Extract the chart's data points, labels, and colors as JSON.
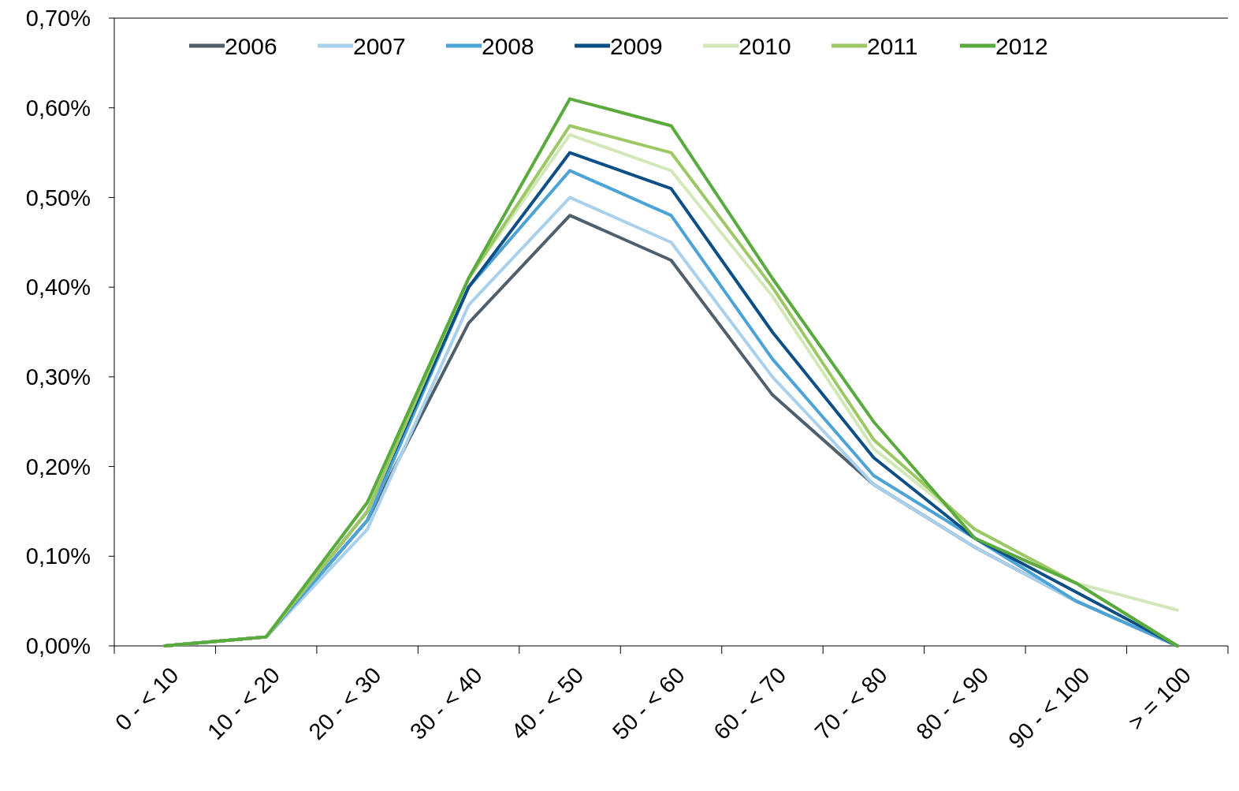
{
  "chart_data": {
    "type": "line",
    "categories": [
      "0 - < 10",
      "10 - < 20",
      "20 - < 30",
      "30 - < 40",
      "40 - < 50",
      "50 - < 60",
      "60 - < 70",
      "70 - < 80",
      "80 - < 90",
      "90 - < 100",
      "> = 100"
    ],
    "series": [
      {
        "name": "2006",
        "color": "#4f5f6b",
        "values": [
          0,
          0.01,
          0.14,
          0.36,
          0.48,
          0.43,
          0.28,
          0.18,
          0.11,
          0.05,
          0
        ]
      },
      {
        "name": "2007",
        "color": "#a9d0ec",
        "values": [
          0,
          0.01,
          0.13,
          0.38,
          0.5,
          0.45,
          0.3,
          0.18,
          0.11,
          0.05,
          0
        ]
      },
      {
        "name": "2008",
        "color": "#4ba3d8",
        "values": [
          0,
          0.01,
          0.14,
          0.4,
          0.53,
          0.48,
          0.32,
          0.19,
          0.12,
          0.05,
          0
        ]
      },
      {
        "name": "2009",
        "color": "#0c4f87",
        "values": [
          0,
          0.01,
          0.15,
          0.4,
          0.55,
          0.51,
          0.35,
          0.21,
          0.12,
          0.06,
          0
        ]
      },
      {
        "name": "2010",
        "color": "#d3e8b8",
        "values": [
          0,
          0.01,
          0.15,
          0.41,
          0.57,
          0.53,
          0.39,
          0.22,
          0.13,
          0.07,
          0.04
        ]
      },
      {
        "name": "2011",
        "color": "#9cc866",
        "values": [
          0,
          0.01,
          0.15,
          0.41,
          0.58,
          0.55,
          0.4,
          0.23,
          0.13,
          0.07,
          0
        ]
      },
      {
        "name": "2012",
        "color": "#5aab3d",
        "values": [
          0,
          0.01,
          0.16,
          0.41,
          0.61,
          0.58,
          0.41,
          0.25,
          0.12,
          0.07,
          0
        ]
      }
    ],
    "ylim": [
      0,
      0.7
    ],
    "yticks": [
      {
        "value": 0,
        "label": "0,00%"
      },
      {
        "value": 0.1,
        "label": "0,10%"
      },
      {
        "value": 0.2,
        "label": "0,20%"
      },
      {
        "value": 0.3,
        "label": "0,30%"
      },
      {
        "value": 0.4,
        "label": "0,40%"
      },
      {
        "value": 0.5,
        "label": "0,50%"
      },
      {
        "value": 0.6,
        "label": "0,60%"
      },
      {
        "value": 0.7,
        "label": "0,70%"
      }
    ],
    "legend": "top left",
    "grid": false,
    "marker": "none",
    "line_style": "solid"
  }
}
